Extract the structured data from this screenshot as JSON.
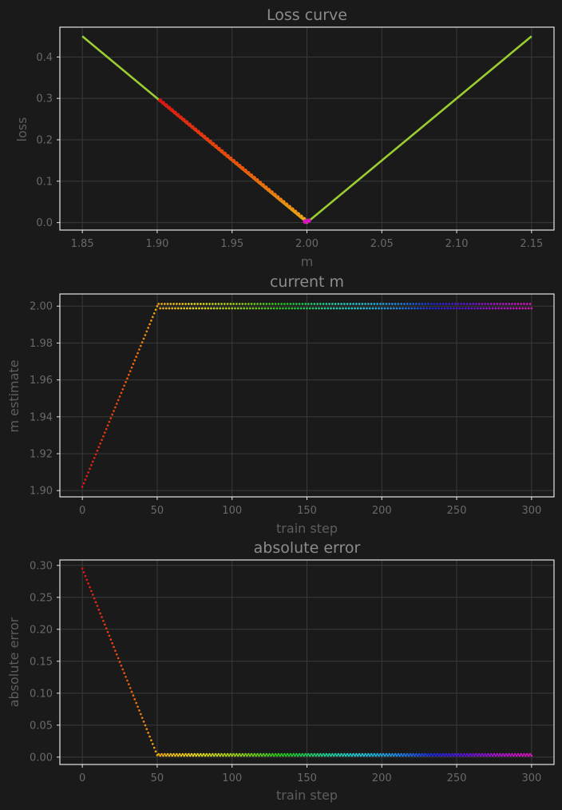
{
  "theme": {
    "background": "#1a1a1a",
    "grid_color": "#3a3a3a",
    "frame_color": "#e6e6e6",
    "text_color": "#8c8c8c",
    "loss_line_color": "#9acd32",
    "colormap": "gist_rainbow (red→orange→yellow→green→cyan→blue→magenta) across train steps 0–300"
  },
  "chart_data": [
    {
      "type": "line",
      "title": "Loss curve",
      "xlabel": "m",
      "ylabel": "loss",
      "xlim": [
        1.835,
        2.165
      ],
      "ylim": [
        -0.018,
        0.472
      ],
      "xticks": [
        1.85,
        1.9,
        1.95,
        2.0,
        2.05,
        2.1,
        2.15
      ],
      "xtick_labels": [
        "1.85",
        "1.90",
        "1.95",
        "2.00",
        "2.05",
        "2.10",
        "2.15"
      ],
      "yticks": [
        0.0,
        0.1,
        0.2,
        0.3,
        0.4
      ],
      "ytick_labels": [
        "0.0",
        "0.1",
        "0.2",
        "0.3",
        "0.4"
      ],
      "grid": true,
      "series": [
        {
          "kind": "line",
          "color": "#9acd32",
          "x": [
            1.85,
            2.0,
            2.15
          ],
          "y": [
            0.45,
            0.0,
            0.45
          ]
        },
        {
          "kind": "scatter",
          "note": "loss = |m - 2| at each train step, colored by step",
          "x_from": "m estimate",
          "y_from": "absolute error"
        }
      ]
    },
    {
      "type": "scatter",
      "title": "current m",
      "xlabel": "train step",
      "ylabel": "m estimate",
      "xlim": [
        -15,
        315
      ],
      "ylim": [
        1.8966,
        2.0066
      ],
      "xticks": [
        0,
        50,
        100,
        150,
        200,
        250,
        300
      ],
      "xtick_labels": [
        "0",
        "50",
        "100",
        "150",
        "200",
        "250",
        "300"
      ],
      "yticks": [
        1.9,
        1.92,
        1.94,
        1.96,
        1.98,
        2.0
      ],
      "ytick_labels": [
        "1.90",
        "1.92",
        "1.94",
        "1.96",
        "1.98",
        "2.00"
      ],
      "grid": true,
      "series": [
        {
          "steps": [
            0,
            300
          ],
          "ramp": {
            "start_step": 0,
            "end_step": 50,
            "start_value": 1.902,
            "end_value": 2.0
          },
          "oscillation_after_step_50": {
            "center": 2.0,
            "amplitude": 0.0012,
            "alternating": true
          }
        }
      ]
    },
    {
      "type": "scatter",
      "title": "absolute error",
      "xlabel": "train step",
      "ylabel": "absolute error",
      "xlim": [
        -15,
        315
      ],
      "ylim": [
        -0.0115,
        0.3085
      ],
      "xticks": [
        0,
        50,
        100,
        150,
        200,
        250,
        300
      ],
      "xtick_labels": [
        "0",
        "50",
        "100",
        "150",
        "200",
        "250",
        "300"
      ],
      "yticks": [
        0.0,
        0.05,
        0.1,
        0.15,
        0.2,
        0.25,
        0.3
      ],
      "ytick_labels": [
        "0.00",
        "0.05",
        "0.10",
        "0.15",
        "0.20",
        "0.25",
        "0.30"
      ],
      "grid": true,
      "series": [
        {
          "steps": [
            0,
            300
          ],
          "ramp": {
            "start_step": 0,
            "end_step": 50,
            "start_value": 0.295,
            "end_value": 0.003
          },
          "plateau_after_step_50": {
            "center": 0.0035,
            "amplitude": 0.0012,
            "alternating": true
          }
        }
      ]
    }
  ]
}
